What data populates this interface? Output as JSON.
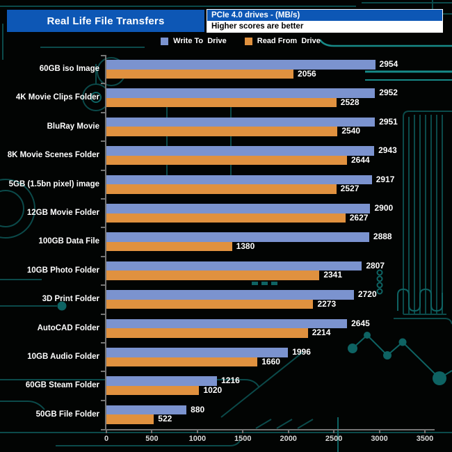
{
  "header": {
    "title": "Real Life File Transfers",
    "info_top": "PCIe 4.0 drives - (MB/s)",
    "info_bottom": "Higher scores are better"
  },
  "legend": [
    {
      "label": "Write To  Drive",
      "color": "#7b93cf"
    },
    {
      "label": "Read From  Drive",
      "color": "#e0913f"
    }
  ],
  "colors": {
    "background": "#020403",
    "header_blue": "#0d57b5",
    "bar_write": "#7b93cf",
    "bar_read": "#e0913f",
    "axis": "#757575",
    "tick_text": "#d8d8d8",
    "label_text": "#ffffff",
    "circuit": "#0b4a4a",
    "circuit_bright": "#178a88"
  },
  "chart_data": {
    "type": "bar",
    "orientation": "horizontal",
    "title": "Real Life File Transfers",
    "subtitle": "PCIe 4.0 drives - (MB/s)",
    "note": "Higher scores are better",
    "xlabel": "MB/s",
    "ylabel": "",
    "xlim": [
      0,
      3500
    ],
    "x_ticks": [
      0,
      500,
      1000,
      1500,
      2000,
      2500,
      3000,
      3500
    ],
    "grid": false,
    "legend_position": "top",
    "value_labels": true,
    "categories": [
      "60GB iso Image",
      "4K Movie Clips Folder",
      "BluRay Movie",
      "8K Movie Scenes Folder",
      "5GB (1.5bn pixel) image",
      "12GB Movie Folder",
      "100GB Data File",
      "10GB Photo Folder",
      "3D Print Folder",
      "AutoCAD Folder",
      "10GB Audio Folder",
      "60GB Steam Folder",
      "50GB File Folder"
    ],
    "series": [
      {
        "name": "Write To  Drive",
        "color": "#7b93cf",
        "values": [
          2954,
          2952,
          2951,
          2943,
          2917,
          2900,
          2888,
          2807,
          2720,
          2645,
          1996,
          1216,
          880
        ]
      },
      {
        "name": "Read From  Drive",
        "color": "#e0913f",
        "values": [
          2056,
          2528,
          2540,
          2644,
          2527,
          2627,
          1380,
          2341,
          2273,
          2214,
          1660,
          1020,
          522
        ]
      }
    ]
  }
}
